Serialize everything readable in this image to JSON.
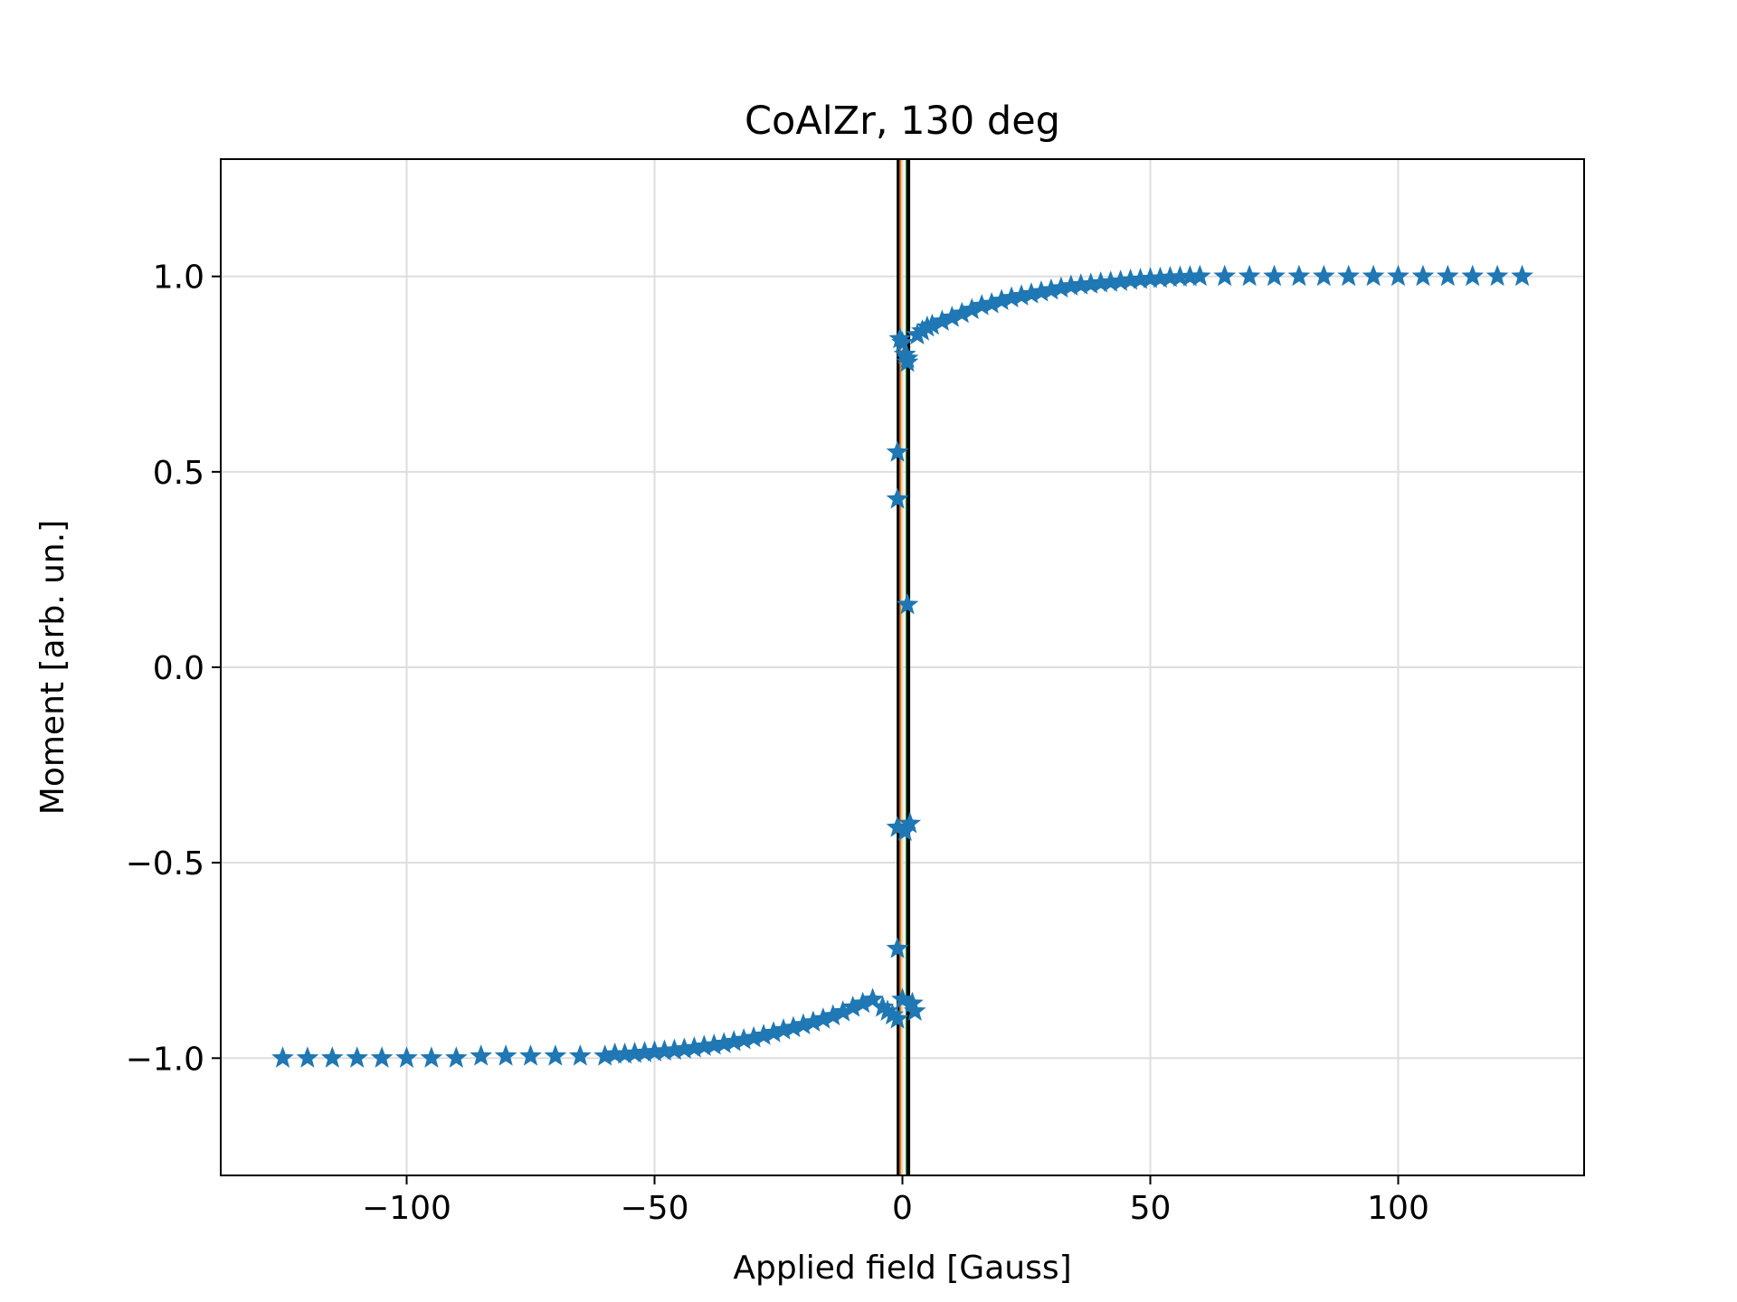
{
  "chart_data": {
    "type": "scatter",
    "title": "CoAlZr, 130 deg",
    "xlabel": "Applied field [Gauss]",
    "ylabel": "Moment [arb. un.]",
    "xlim": [
      -137.5,
      137.5
    ],
    "ylim": [
      -1.3,
      1.3
    ],
    "x_ticks": [
      -100,
      -50,
      0,
      50,
      100
    ],
    "x_tick_labels": [
      "−100",
      "−50",
      "0",
      "50",
      "100"
    ],
    "y_ticks": [
      -1.0,
      -0.5,
      0.0,
      0.5,
      1.0
    ],
    "y_tick_labels": [
      "−1.0",
      "−0.5",
      "0.0",
      "0.5",
      "1.0"
    ],
    "grid": true,
    "marker": "star",
    "colors": {
      "series": "#1f77b4",
      "vline_black": "#000000",
      "vline_orange": "#ff7f0e",
      "vline_green": "#2ca02c",
      "grid": "#dddddd",
      "axes": "#000000"
    },
    "series": [
      {
        "x": [
          -125,
          -120,
          -115,
          -110,
          -105,
          -100,
          -95,
          -90,
          -85,
          -80,
          -75,
          -70,
          -65,
          -60,
          -58,
          -56,
          -54,
          -52,
          -50,
          -48,
          -46,
          -44,
          -42,
          -40,
          -38,
          -36,
          -34,
          -32,
          -30,
          -28,
          -26,
          -24,
          -22,
          -20,
          -18,
          -16,
          -14,
          -12,
          -10,
          -8,
          -6,
          -4,
          -3,
          -2,
          -1,
          0,
          0.5,
          1,
          1.5,
          2,
          2.5,
          3,
          4,
          5,
          6,
          8,
          10,
          12,
          14,
          16,
          18,
          20,
          22,
          24,
          26,
          28,
          30,
          32,
          34,
          36,
          38,
          40,
          42,
          44,
          46,
          48,
          50,
          52,
          54,
          56,
          58,
          60,
          65,
          70,
          75,
          80,
          85,
          90,
          95,
          100,
          105,
          110,
          115,
          120,
          125
        ],
        "y": [
          -1.0,
          -1.0,
          -1.0,
          -1.0,
          -1.0,
          -1.0,
          -1.0,
          -1.0,
          -0.995,
          -0.995,
          -0.995,
          -0.995,
          -0.995,
          -0.995,
          -0.99,
          -0.99,
          -0.988,
          -0.986,
          -0.984,
          -0.982,
          -0.98,
          -0.977,
          -0.974,
          -0.97,
          -0.967,
          -0.963,
          -0.958,
          -0.953,
          -0.948,
          -0.942,
          -0.935,
          -0.928,
          -0.922,
          -0.915,
          -0.908,
          -0.9,
          -0.892,
          -0.882,
          -0.87,
          -0.86,
          -0.85,
          -0.87,
          -0.88,
          -0.89,
          -0.9,
          -0.85,
          -0.42,
          0.16,
          -0.4,
          -0.86,
          -0.88,
          0.85,
          0.86,
          0.87,
          0.875,
          0.885,
          0.895,
          0.905,
          0.915,
          0.925,
          0.93,
          0.938,
          0.945,
          0.95,
          0.955,
          0.96,
          0.965,
          0.97,
          0.975,
          0.978,
          0.98,
          0.983,
          0.985,
          0.987,
          0.99,
          0.992,
          0.994,
          0.995,
          0.997,
          0.998,
          0.999,
          1.0,
          1.0,
          1.0,
          1.0,
          1.0,
          1.0,
          1.0,
          1.0,
          1.0,
          1.0,
          1.0,
          1.0,
          1.0,
          1.0
        ]
      },
      {
        "x": [
          -1,
          -1,
          -1,
          -1,
          -0.5,
          0,
          0.5,
          1,
          1
        ],
        "y": [
          0.55,
          0.43,
          -0.72,
          -0.41,
          0.84,
          0.83,
          0.8,
          0.79,
          0.78
        ]
      }
    ],
    "vlines": [
      {
        "x": -0.8,
        "color": "black"
      },
      {
        "x": -0.4,
        "color": "orange"
      },
      {
        "x": 0.8,
        "color": "green"
      },
      {
        "x": 1.2,
        "color": "black"
      }
    ]
  }
}
